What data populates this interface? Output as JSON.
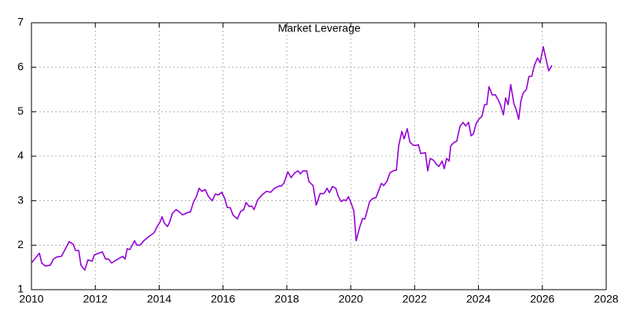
{
  "chart_data": {
    "type": "line",
    "title": "Market Leverage",
    "x": [
      2010.0,
      2010.1,
      2010.25,
      2010.32,
      2010.44,
      2010.59,
      2010.69,
      2010.81,
      2010.94,
      2011.08,
      2011.18,
      2011.31,
      2011.38,
      2011.48,
      2011.55,
      2011.67,
      2011.77,
      2011.9,
      2011.97,
      2012.07,
      2012.22,
      2012.32,
      2012.41,
      2012.51,
      2012.71,
      2012.86,
      2012.93,
      2013.0,
      2013.08,
      2013.23,
      2013.3,
      2013.4,
      2013.52,
      2013.69,
      2013.84,
      2013.94,
      2014.04,
      2014.09,
      2014.16,
      2014.26,
      2014.33,
      2014.41,
      2014.53,
      2014.63,
      2014.73,
      2014.88,
      2014.98,
      2015.07,
      2015.17,
      2015.25,
      2015.34,
      2015.44,
      2015.54,
      2015.66,
      2015.76,
      2015.86,
      2015.96,
      2016.06,
      2016.13,
      2016.23,
      2016.31,
      2016.45,
      2016.55,
      2016.65,
      2016.72,
      2016.82,
      2016.9,
      2016.97,
      2017.09,
      2017.22,
      2017.36,
      2017.49,
      2017.61,
      2017.76,
      2017.83,
      2017.91,
      2018.03,
      2018.13,
      2018.25,
      2018.35,
      2018.42,
      2018.5,
      2018.62,
      2018.69,
      2018.82,
      2018.92,
      2019.04,
      2019.16,
      2019.26,
      2019.33,
      2019.43,
      2019.53,
      2019.61,
      2019.7,
      2019.78,
      2019.85,
      2019.93,
      2020.02,
      2020.1,
      2020.17,
      2020.27,
      2020.37,
      2020.44,
      2020.51,
      2020.59,
      2020.69,
      2020.79,
      2020.89,
      2020.96,
      2021.03,
      2021.13,
      2021.23,
      2021.33,
      2021.43,
      2021.5,
      2021.6,
      2021.67,
      2021.77,
      2021.85,
      2021.95,
      2022.04,
      2022.12,
      2022.19,
      2022.34,
      2022.41,
      2022.49,
      2022.59,
      2022.68,
      2022.76,
      2022.86,
      2022.93,
      2023.0,
      2023.08,
      2023.13,
      2023.23,
      2023.32,
      2023.42,
      2023.52,
      2023.6,
      2023.69,
      2023.77,
      2023.84,
      2023.92,
      2024.01,
      2024.11,
      2024.19,
      2024.26,
      2024.33,
      2024.43,
      2024.53,
      2024.63,
      2024.7,
      2024.78,
      2024.85,
      2024.93,
      2025.01,
      2025.11,
      2025.18,
      2025.26,
      2025.33,
      2025.4,
      2025.5,
      2025.58,
      2025.67,
      2025.75,
      2025.85,
      2025.93,
      2026.03,
      2026.1,
      2026.2,
      2026.3
    ],
    "values": [
      1.6,
      1.69,
      1.82,
      1.6,
      1.53,
      1.55,
      1.69,
      1.74,
      1.75,
      1.94,
      2.08,
      2.02,
      1.88,
      1.88,
      1.55,
      1.44,
      1.67,
      1.64,
      1.78,
      1.81,
      1.85,
      1.69,
      1.69,
      1.6,
      1.69,
      1.75,
      1.69,
      1.92,
      1.9,
      2.1,
      2.0,
      2.0,
      2.1,
      2.2,
      2.28,
      2.42,
      2.54,
      2.64,
      2.5,
      2.42,
      2.52,
      2.71,
      2.8,
      2.75,
      2.68,
      2.73,
      2.75,
      2.96,
      3.1,
      3.28,
      3.21,
      3.25,
      3.1,
      3.0,
      3.15,
      3.13,
      3.19,
      3.04,
      2.85,
      2.84,
      2.68,
      2.59,
      2.76,
      2.8,
      2.96,
      2.87,
      2.88,
      2.8,
      3.02,
      3.13,
      3.21,
      3.19,
      3.28,
      3.33,
      3.33,
      3.4,
      3.65,
      3.52,
      3.63,
      3.67,
      3.6,
      3.67,
      3.67,
      3.43,
      3.34,
      2.9,
      3.16,
      3.16,
      3.28,
      3.18,
      3.32,
      3.28,
      3.1,
      2.98,
      3.02,
      3.0,
      3.09,
      2.93,
      2.76,
      2.1,
      2.38,
      2.6,
      2.59,
      2.76,
      2.98,
      3.05,
      3.07,
      3.26,
      3.39,
      3.34,
      3.43,
      3.63,
      3.67,
      3.69,
      4.23,
      4.56,
      4.39,
      4.62,
      4.32,
      4.25,
      4.24,
      4.26,
      4.06,
      4.08,
      3.67,
      3.95,
      3.91,
      3.82,
      3.77,
      3.89,
      3.72,
      3.95,
      3.89,
      4.23,
      4.31,
      4.34,
      4.67,
      4.76,
      4.68,
      4.76,
      4.46,
      4.5,
      4.72,
      4.83,
      4.9,
      5.16,
      5.16,
      5.56,
      5.38,
      5.38,
      5.25,
      5.13,
      4.93,
      5.31,
      5.16,
      5.61,
      5.18,
      5.05,
      4.83,
      5.25,
      5.42,
      5.5,
      5.79,
      5.8,
      6.04,
      6.21,
      6.1,
      6.46,
      6.23,
      5.92,
      6.04
    ],
    "color": "#9400d3",
    "xlim": [
      2010,
      2028
    ],
    "xticks": [
      2010,
      2012,
      2014,
      2016,
      2018,
      2020,
      2022,
      2024,
      2026,
      2028
    ],
    "ylim": [
      1,
      7
    ],
    "yticks": [
      1,
      2,
      3,
      4,
      5,
      6,
      7
    ],
    "grid": true
  }
}
